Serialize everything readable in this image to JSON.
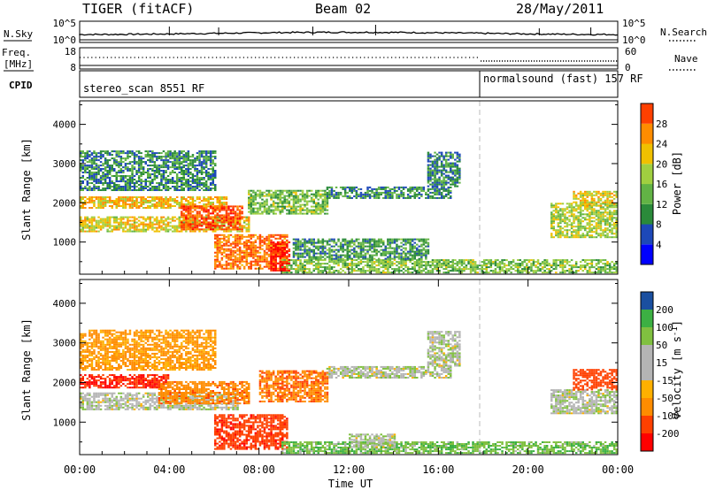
{
  "header": {
    "title_left": "TIGER (fitACF)",
    "title_center": "Beam 02",
    "title_right": "28/May/2011"
  },
  "nsky_panel": {
    "left_label": "N.Sky",
    "right_label": "N.Search",
    "left_ticks": [
      "10^5",
      "10^0"
    ],
    "right_ticks": [
      "10^5",
      "10^0"
    ]
  },
  "freq_panel": {
    "left_label_1": "Freq.",
    "left_label_2": "[MHz]",
    "right_label": "Nave",
    "left_ticks": [
      "18",
      "8"
    ],
    "right_ticks": [
      "60",
      "0"
    ]
  },
  "cpid_panel": {
    "label": "CPID",
    "program_1": "stereo_scan 8551 RF",
    "program_2": "normalsound (fast) 157 RF",
    "switch_time_hours": 18.0
  },
  "colors": {
    "power_scale": [
      "#0000ff",
      "#1d48b8",
      "#2a8a3a",
      "#62b345",
      "#a0cf40",
      "#f0c000",
      "#ff8c00",
      "#ff4000",
      "#ff0000"
    ],
    "velocity_scale": [
      "#ff0000",
      "#ff4000",
      "#ff8c00",
      "#ffb000",
      "#b4b4b4",
      "#b4b4b4",
      "#80c040",
      "#3cb043",
      "#1a4fa0",
      "#0000ff"
    ],
    "ground_scatter": "#b4b4b4"
  },
  "chart_data": [
    {
      "type": "heatmap",
      "title": "",
      "xlabel": "",
      "ylabel": "Slant Range [km]",
      "xlim_hours": [
        0,
        24
      ],
      "ylim": [
        180,
        4600
      ],
      "y_ticks": [
        1000,
        2000,
        3000,
        4000
      ],
      "colorbar": {
        "label": "Power [dB]",
        "ticks": [
          4,
          8,
          12,
          16,
          20,
          24,
          28
        ],
        "range": [
          0,
          30
        ]
      },
      "bands": [
        {
          "t0": 0.0,
          "t1": 7.5,
          "r0": 1250,
          "r1": 1650,
          "v": 16
        },
        {
          "t0": 0.0,
          "t1": 6.5,
          "r0": 1850,
          "r1": 2150,
          "v": 18
        },
        {
          "t0": 4.5,
          "t1": 7.2,
          "r0": 1300,
          "r1": 1900,
          "v": 24
        },
        {
          "t0": 6.0,
          "t1": 9.2,
          "r0": 300,
          "r1": 1200,
          "v": 22
        },
        {
          "t0": 9.0,
          "t1": 24.0,
          "r0": 200,
          "r1": 520,
          "v": 12
        },
        {
          "t0": 9.5,
          "t1": 15.5,
          "r0": 550,
          "r1": 1050,
          "v": 9
        },
        {
          "t0": 7.5,
          "t1": 11.0,
          "r0": 1700,
          "r1": 2300,
          "v": 12
        },
        {
          "t0": 11.0,
          "t1": 16.5,
          "r0": 2100,
          "r1": 2400,
          "v": 8
        },
        {
          "t0": 15.5,
          "t1": 17.0,
          "r0": 2400,
          "r1": 3300,
          "v": 8
        },
        {
          "t0": 0.0,
          "t1": 6.0,
          "r0": 2300,
          "r1": 3300,
          "v": 8
        },
        {
          "t0": 21.0,
          "t1": 24.0,
          "r0": 1100,
          "r1": 2000,
          "v": 14
        },
        {
          "t0": 22.0,
          "t1": 24.0,
          "r0": 1900,
          "r1": 2300,
          "v": 16
        },
        {
          "t0": 8.5,
          "t1": 9.3,
          "r0": 250,
          "r1": 1000,
          "v": 28
        }
      ]
    },
    {
      "type": "heatmap",
      "title": "",
      "xlabel": "Time UT",
      "ylabel": "Slant Range [km]",
      "xlim_hours": [
        0,
        24
      ],
      "ylim": [
        180,
        4600
      ],
      "y_ticks": [
        1000,
        2000,
        3000,
        4000
      ],
      "x_ticks": [
        "00:00",
        "04:00",
        "08:00",
        "12:00",
        "16:00",
        "20:00",
        "00:00"
      ],
      "colorbar": {
        "label": "Velocity [m s^-1]",
        "ticks": [
          200,
          100,
          50,
          15,
          -15,
          -50,
          -100,
          -200
        ],
        "range": [
          -250,
          250
        ]
      },
      "bands": [
        {
          "t0": 0.0,
          "t1": 7.0,
          "r0": 1300,
          "r1": 1750,
          "v": 0
        },
        {
          "t0": 0.0,
          "t1": 4.0,
          "r0": 1850,
          "r1": 2200,
          "v": -200
        },
        {
          "t0": 3.5,
          "t1": 7.5,
          "r0": 1450,
          "r1": 2000,
          "v": -80
        },
        {
          "t0": 6.0,
          "t1": 9.2,
          "r0": 300,
          "r1": 1200,
          "v": -180
        },
        {
          "t0": 9.0,
          "t1": 24.0,
          "r0": 200,
          "r1": 500,
          "v": 40
        },
        {
          "t0": 11.0,
          "t1": 16.5,
          "r0": 2100,
          "r1": 2400,
          "v": 0
        },
        {
          "t0": 15.5,
          "t1": 17.0,
          "r0": 2400,
          "r1": 3300,
          "v": 0
        },
        {
          "t0": 12.0,
          "t1": 14.0,
          "r0": 350,
          "r1": 700,
          "v": 0
        },
        {
          "t0": 8.0,
          "t1": 11.0,
          "r0": 1500,
          "r1": 2300,
          "v": -90
        },
        {
          "t0": 21.0,
          "t1": 24.0,
          "r0": 1200,
          "r1": 1800,
          "v": 0
        },
        {
          "t0": 22.0,
          "t1": 24.0,
          "r0": 1800,
          "r1": 2300,
          "v": -150
        },
        {
          "t0": 0.0,
          "t1": 6.0,
          "r0": 2300,
          "r1": 3300,
          "v": -60
        }
      ]
    }
  ]
}
